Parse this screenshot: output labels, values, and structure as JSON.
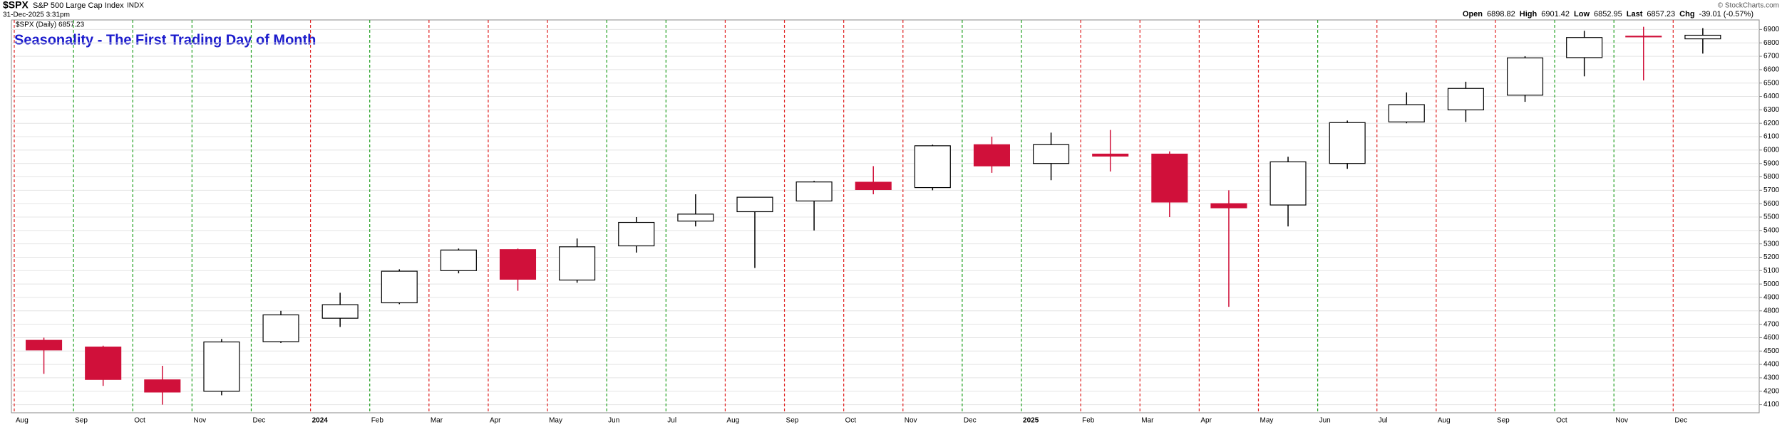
{
  "chart_data": {
    "type": "candlestick",
    "symbol": "$SPX",
    "name": "S&P 500 Large Cap Index",
    "exchange": "INDX",
    "date": "31-Dec-2025 3:31pm",
    "copyright": "© StockCharts.com",
    "stats": [
      {
        "label": "Open",
        "value": "6898.82"
      },
      {
        "label": "High",
        "value": "6901.42"
      },
      {
        "label": "Low",
        "value": "6852.95"
      },
      {
        "label": "Last",
        "value": "6857.23"
      },
      {
        "label": "Chg",
        "value": "-39.01 (-0.57%)"
      }
    ],
    "legend": "$SPX (Daily) 6857.23",
    "title": "Seasonality - The First Trading Day of Month",
    "categories": [
      "Aug",
      "Sep",
      "Oct",
      "Nov",
      "Dec",
      "2024",
      "Feb",
      "Mar",
      "Apr",
      "May",
      "Jun",
      "Jul",
      "Aug",
      "Sep",
      "Oct",
      "Nov",
      "Dec",
      "2025",
      "Feb",
      "Mar",
      "Apr",
      "May",
      "Jun",
      "Jul",
      "Aug",
      "Sep",
      "Oct",
      "Nov",
      "Dec"
    ],
    "open": [
      4580,
      4530,
      4285,
      4200,
      4570,
      4745,
      4860,
      5100,
      5257,
      5030,
      5285,
      5470,
      5540,
      5620,
      5760,
      5720,
      6040,
      5900,
      5970,
      5970,
      5600,
      5590,
      5900,
      6210,
      6300,
      6410,
      6690,
      6850,
      6830
    ],
    "high": [
      4600,
      4540,
      4390,
      4590,
      4800,
      4935,
      5110,
      5265,
      5265,
      5340,
      5500,
      5670,
      5650,
      5770,
      5880,
      6040,
      6100,
      6130,
      6150,
      5990,
      5700,
      5950,
      6220,
      6430,
      6510,
      6700,
      6890,
      6920,
      6910
    ],
    "low": [
      4330,
      4240,
      4100,
      4170,
      4560,
      4680,
      4850,
      5080,
      4950,
      5010,
      5235,
      5430,
      5120,
      5400,
      5670,
      5700,
      5830,
      5775,
      5840,
      5500,
      4830,
      5430,
      5860,
      6200,
      6210,
      6360,
      6550,
      6520,
      6720
    ],
    "close": [
      4508,
      4288,
      4194,
      4568,
      4770,
      4846,
      5096,
      5254,
      5036,
      5278,
      5460,
      5522,
      5648,
      5762,
      5705,
      6032,
      5882,
      6040,
      5955,
      5612,
      5569,
      5912,
      6205,
      6339,
      6460,
      6688,
      6840,
      6849,
      6857
    ],
    "up_color": "#000000",
    "down_color": "#d0103a",
    "month_line_colors": [
      "#e02020",
      "#20a020",
      "#20a020",
      "#20a020",
      "#20a020",
      "#e02020",
      "#20a020",
      "#e02020",
      "#e02020",
      "#e02020",
      "#20a020",
      "#20a020",
      "#e02020",
      "#e02020",
      "#e02020",
      "#e02020",
      "#20a020",
      "#20a020",
      "#e02020",
      "#e02020",
      "#e02020",
      "#e02020",
      "#20a020",
      "#e02020",
      "#e02020",
      "#e02020",
      "#20a020",
      "#20a020",
      "#e02020"
    ],
    "title_color": "#1a1acc",
    "ylim": [
      4050,
      6950
    ],
    "yticks": [
      4100,
      4200,
      4300,
      4400,
      4500,
      4600,
      4700,
      4800,
      4900,
      5000,
      5100,
      5200,
      5300,
      5400,
      5500,
      5600,
      5700,
      5800,
      5900,
      6000,
      6100,
      6200,
      6300,
      6400,
      6500,
      6600,
      6700,
      6800,
      6900
    ],
    "grid": true
  }
}
